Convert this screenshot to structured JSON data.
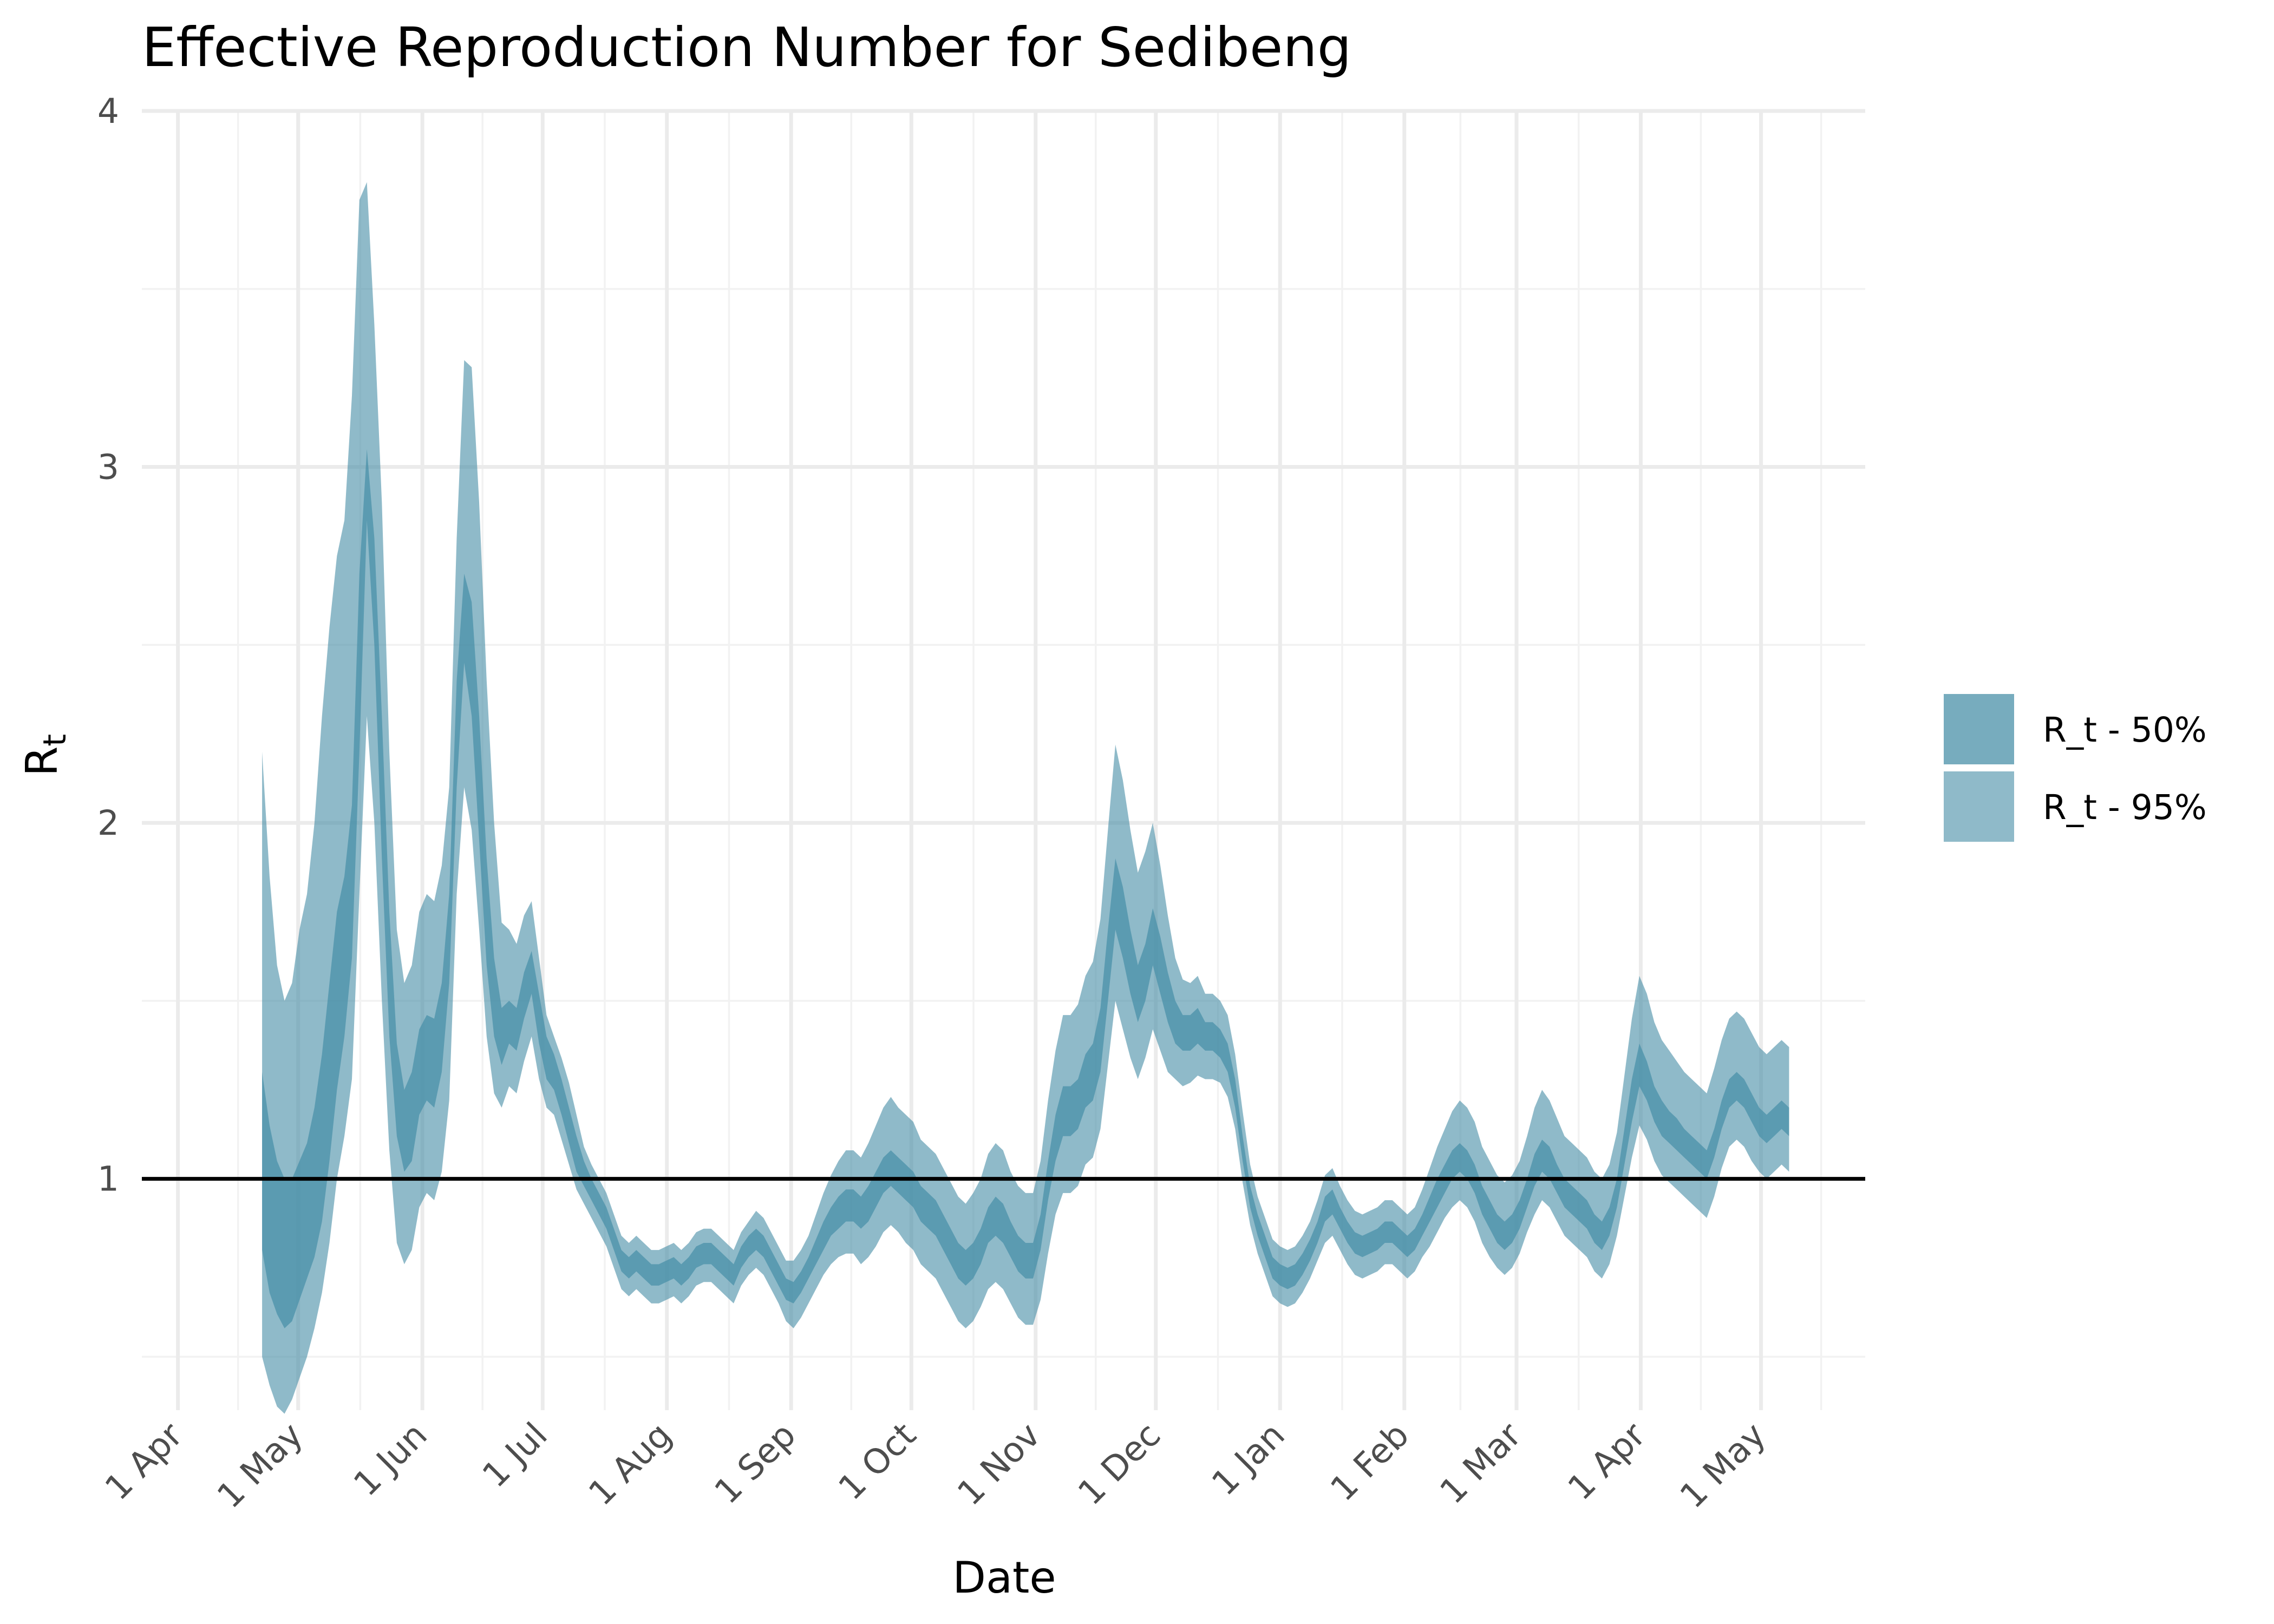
{
  "chart_data": {
    "type": "area",
    "title": "Effective Reproduction Number for Sedibeng",
    "xlabel": "Date",
    "ylabel": "R",
    "ylabel_subscript": "t",
    "ylim": [
      0.35,
      4.0
    ],
    "yticks": [
      1,
      2,
      3,
      4
    ],
    "xlim": [
      "2020-03-23",
      "2021-05-27"
    ],
    "xticks": [
      {
        "date": "2020-04-01",
        "label": "1 Apr"
      },
      {
        "date": "2020-05-01",
        "label": "1 May"
      },
      {
        "date": "2020-06-01",
        "label": "1 Jun"
      },
      {
        "date": "2020-07-01",
        "label": "1 Jul"
      },
      {
        "date": "2020-08-01",
        "label": "1 Aug"
      },
      {
        "date": "2020-09-01",
        "label": "1 Sep"
      },
      {
        "date": "2020-10-01",
        "label": "1 Oct"
      },
      {
        "date": "2020-11-01",
        "label": "1 Nov"
      },
      {
        "date": "2020-12-01",
        "label": "1 Dec"
      },
      {
        "date": "2021-01-01",
        "label": "1 Jan"
      },
      {
        "date": "2021-02-01",
        "label": "1 Feb"
      },
      {
        "date": "2021-03-01",
        "label": "1 Mar"
      },
      {
        "date": "2021-04-01",
        "label": "1 Apr"
      },
      {
        "date": "2021-05-01",
        "label": "1 May"
      }
    ],
    "reference_line": 1,
    "grid": true,
    "legend_position": "right",
    "colors": {
      "band50": "#4a90a8",
      "band95": "#4a90a8",
      "reference": "#000000"
    },
    "series": [
      {
        "name": "R_t - 50%",
        "lower": [
          0.8,
          0.68,
          0.62,
          0.58,
          0.6,
          0.66,
          0.72,
          0.78,
          0.88,
          1.05,
          1.25,
          1.4,
          1.62,
          2.2,
          2.85,
          2.5,
          1.9,
          1.4,
          1.12,
          1.02,
          1.05,
          1.18,
          1.22,
          1.2,
          1.3,
          1.55,
          2.1,
          2.45,
          2.3,
          1.95,
          1.6,
          1.4,
          1.32,
          1.38,
          1.36,
          1.45,
          1.52,
          1.38,
          1.28,
          1.25,
          1.18,
          1.1,
          1.02,
          0.98,
          0.94,
          0.9,
          0.86,
          0.8,
          0.74,
          0.72,
          0.74,
          0.72,
          0.7,
          0.7,
          0.71,
          0.72,
          0.7,
          0.72,
          0.75,
          0.76,
          0.76,
          0.74,
          0.72,
          0.7,
          0.75,
          0.78,
          0.8,
          0.78,
          0.74,
          0.7,
          0.66,
          0.65,
          0.68,
          0.72,
          0.76,
          0.8,
          0.84,
          0.86,
          0.88,
          0.88,
          0.86,
          0.88,
          0.92,
          0.96,
          0.98,
          0.96,
          0.94,
          0.92,
          0.88,
          0.86,
          0.84,
          0.8,
          0.76,
          0.72,
          0.7,
          0.72,
          0.76,
          0.82,
          0.84,
          0.82,
          0.78,
          0.74,
          0.72,
          0.72,
          0.8,
          0.94,
          1.05,
          1.12,
          1.12,
          1.14,
          1.2,
          1.22,
          1.3,
          1.5,
          1.7,
          1.62,
          1.52,
          1.44,
          1.5,
          1.6,
          1.52,
          1.44,
          1.38,
          1.36,
          1.36,
          1.38,
          1.36,
          1.36,
          1.34,
          1.3,
          1.2,
          1.05,
          0.92,
          0.84,
          0.78,
          0.72,
          0.7,
          0.69,
          0.7,
          0.73,
          0.77,
          0.82,
          0.88,
          0.9,
          0.86,
          0.82,
          0.79,
          0.78,
          0.79,
          0.8,
          0.82,
          0.82,
          0.8,
          0.78,
          0.8,
          0.84,
          0.88,
          0.92,
          0.96,
          1.0,
          1.02,
          1.0,
          0.96,
          0.9,
          0.86,
          0.82,
          0.8,
          0.82,
          0.86,
          0.92,
          0.98,
          1.02,
          1.0,
          0.96,
          0.92,
          0.9,
          0.88,
          0.86,
          0.82,
          0.8,
          0.84,
          0.92,
          1.04,
          1.16,
          1.26,
          1.22,
          1.16,
          1.12,
          1.1,
          1.08,
          1.06,
          1.04,
          1.02,
          1.0,
          1.06,
          1.14,
          1.2,
          1.22,
          1.2,
          1.16,
          1.12,
          1.1,
          1.12,
          1.14,
          1.12
        ],
        "upper": [
          1.3,
          1.15,
          1.05,
          1.0,
          1.0,
          1.05,
          1.1,
          1.2,
          1.35,
          1.55,
          1.75,
          1.85,
          2.05,
          2.7,
          3.05,
          2.8,
          2.3,
          1.75,
          1.38,
          1.25,
          1.3,
          1.42,
          1.46,
          1.45,
          1.55,
          1.8,
          2.4,
          2.7,
          2.62,
          2.3,
          1.9,
          1.62,
          1.48,
          1.5,
          1.48,
          1.58,
          1.64,
          1.52,
          1.4,
          1.35,
          1.28,
          1.2,
          1.12,
          1.05,
          1.0,
          0.96,
          0.92,
          0.86,
          0.8,
          0.78,
          0.8,
          0.78,
          0.76,
          0.76,
          0.77,
          0.78,
          0.76,
          0.78,
          0.81,
          0.82,
          0.82,
          0.8,
          0.78,
          0.76,
          0.81,
          0.84,
          0.86,
          0.84,
          0.8,
          0.76,
          0.72,
          0.71,
          0.74,
          0.78,
          0.83,
          0.88,
          0.92,
          0.95,
          0.97,
          0.97,
          0.95,
          0.98,
          1.02,
          1.06,
          1.08,
          1.06,
          1.04,
          1.02,
          0.98,
          0.96,
          0.94,
          0.9,
          0.86,
          0.82,
          0.8,
          0.82,
          0.86,
          0.92,
          0.95,
          0.93,
          0.88,
          0.84,
          0.82,
          0.82,
          0.9,
          1.05,
          1.18,
          1.26,
          1.26,
          1.28,
          1.35,
          1.38,
          1.48,
          1.7,
          1.9,
          1.82,
          1.7,
          1.6,
          1.66,
          1.76,
          1.68,
          1.58,
          1.5,
          1.46,
          1.46,
          1.48,
          1.44,
          1.44,
          1.42,
          1.38,
          1.28,
          1.12,
          0.98,
          0.9,
          0.84,
          0.78,
          0.76,
          0.75,
          0.76,
          0.79,
          0.83,
          0.88,
          0.95,
          0.97,
          0.92,
          0.88,
          0.85,
          0.84,
          0.85,
          0.86,
          0.88,
          0.88,
          0.86,
          0.84,
          0.86,
          0.9,
          0.95,
          1.0,
          1.04,
          1.08,
          1.1,
          1.08,
          1.04,
          0.98,
          0.94,
          0.9,
          0.88,
          0.9,
          0.94,
          1.0,
          1.07,
          1.11,
          1.09,
          1.04,
          1.0,
          0.98,
          0.96,
          0.94,
          0.9,
          0.88,
          0.92,
          1.0,
          1.14,
          1.28,
          1.38,
          1.33,
          1.26,
          1.22,
          1.19,
          1.17,
          1.14,
          1.12,
          1.1,
          1.08,
          1.14,
          1.22,
          1.28,
          1.3,
          1.28,
          1.24,
          1.2,
          1.18,
          1.2,
          1.22,
          1.2
        ]
      },
      {
        "name": "R_t - 95%",
        "lower": [
          0.5,
          0.42,
          0.36,
          0.34,
          0.38,
          0.44,
          0.5,
          0.58,
          0.68,
          0.82,
          1.0,
          1.12,
          1.28,
          1.8,
          2.3,
          2.0,
          1.5,
          1.08,
          0.82,
          0.76,
          0.8,
          0.92,
          0.96,
          0.94,
          1.02,
          1.22,
          1.8,
          2.1,
          1.98,
          1.7,
          1.4,
          1.24,
          1.2,
          1.26,
          1.24,
          1.33,
          1.4,
          1.28,
          1.2,
          1.18,
          1.11,
          1.04,
          0.97,
          0.93,
          0.89,
          0.85,
          0.81,
          0.75,
          0.69,
          0.67,
          0.69,
          0.67,
          0.65,
          0.65,
          0.66,
          0.67,
          0.65,
          0.67,
          0.7,
          0.71,
          0.71,
          0.69,
          0.67,
          0.65,
          0.7,
          0.73,
          0.75,
          0.73,
          0.69,
          0.65,
          0.6,
          0.58,
          0.61,
          0.65,
          0.69,
          0.73,
          0.76,
          0.78,
          0.79,
          0.79,
          0.76,
          0.78,
          0.81,
          0.85,
          0.87,
          0.85,
          0.82,
          0.8,
          0.76,
          0.74,
          0.72,
          0.68,
          0.64,
          0.6,
          0.58,
          0.6,
          0.64,
          0.69,
          0.71,
          0.69,
          0.65,
          0.61,
          0.59,
          0.59,
          0.66,
          0.79,
          0.9,
          0.96,
          0.96,
          0.98,
          1.04,
          1.06,
          1.14,
          1.32,
          1.5,
          1.42,
          1.34,
          1.28,
          1.34,
          1.42,
          1.36,
          1.3,
          1.28,
          1.26,
          1.27,
          1.29,
          1.28,
          1.28,
          1.27,
          1.23,
          1.14,
          0.99,
          0.87,
          0.79,
          0.73,
          0.67,
          0.65,
          0.64,
          0.65,
          0.68,
          0.72,
          0.77,
          0.82,
          0.84,
          0.8,
          0.76,
          0.73,
          0.72,
          0.73,
          0.74,
          0.76,
          0.76,
          0.74,
          0.72,
          0.74,
          0.78,
          0.81,
          0.85,
          0.89,
          0.92,
          0.94,
          0.92,
          0.88,
          0.82,
          0.78,
          0.75,
          0.73,
          0.75,
          0.79,
          0.85,
          0.9,
          0.94,
          0.92,
          0.88,
          0.84,
          0.82,
          0.8,
          0.78,
          0.74,
          0.72,
          0.76,
          0.84,
          0.95,
          1.06,
          1.15,
          1.11,
          1.05,
          1.01,
          0.99,
          0.97,
          0.95,
          0.93,
          0.91,
          0.89,
          0.95,
          1.03,
          1.09,
          1.11,
          1.09,
          1.05,
          1.02,
          1.0,
          1.02,
          1.04,
          1.02
        ],
        "upper": [
          2.2,
          1.85,
          1.6,
          1.5,
          1.55,
          1.7,
          1.8,
          2.0,
          2.3,
          2.55,
          2.75,
          2.85,
          3.2,
          3.75,
          3.8,
          3.4,
          2.9,
          2.2,
          1.7,
          1.55,
          1.6,
          1.75,
          1.8,
          1.78,
          1.88,
          2.1,
          2.8,
          3.3,
          3.28,
          2.9,
          2.4,
          2.0,
          1.72,
          1.7,
          1.66,
          1.74,
          1.78,
          1.62,
          1.46,
          1.4,
          1.34,
          1.27,
          1.18,
          1.09,
          1.04,
          1.0,
          0.96,
          0.9,
          0.84,
          0.82,
          0.84,
          0.82,
          0.8,
          0.8,
          0.81,
          0.82,
          0.8,
          0.82,
          0.85,
          0.86,
          0.86,
          0.84,
          0.82,
          0.8,
          0.85,
          0.88,
          0.91,
          0.89,
          0.85,
          0.81,
          0.77,
          0.77,
          0.8,
          0.84,
          0.9,
          0.96,
          1.01,
          1.05,
          1.08,
          1.08,
          1.06,
          1.1,
          1.15,
          1.2,
          1.23,
          1.2,
          1.18,
          1.16,
          1.11,
          1.09,
          1.07,
          1.03,
          0.99,
          0.95,
          0.93,
          0.96,
          1.0,
          1.07,
          1.1,
          1.08,
          1.02,
          0.98,
          0.96,
          0.96,
          1.05,
          1.22,
          1.36,
          1.46,
          1.46,
          1.49,
          1.57,
          1.61,
          1.73,
          1.98,
          2.22,
          2.12,
          1.98,
          1.86,
          1.92,
          2.0,
          1.88,
          1.74,
          1.62,
          1.56,
          1.55,
          1.57,
          1.52,
          1.52,
          1.5,
          1.46,
          1.35,
          1.19,
          1.04,
          0.95,
          0.89,
          0.83,
          0.81,
          0.8,
          0.81,
          0.84,
          0.88,
          0.94,
          1.01,
          1.03,
          0.98,
          0.94,
          0.91,
          0.9,
          0.91,
          0.92,
          0.94,
          0.94,
          0.92,
          0.9,
          0.92,
          0.97,
          1.03,
          1.09,
          1.14,
          1.19,
          1.22,
          1.2,
          1.16,
          1.09,
          1.05,
          1.01,
          0.99,
          1.01,
          1.05,
          1.12,
          1.2,
          1.25,
          1.22,
          1.17,
          1.12,
          1.1,
          1.08,
          1.06,
          1.02,
          1.0,
          1.04,
          1.13,
          1.29,
          1.45,
          1.57,
          1.52,
          1.44,
          1.39,
          1.36,
          1.33,
          1.3,
          1.28,
          1.26,
          1.24,
          1.31,
          1.39,
          1.45,
          1.47,
          1.45,
          1.41,
          1.37,
          1.35,
          1.37,
          1.39,
          1.37
        ]
      }
    ],
    "x_start": "2020-04-22",
    "x_end": "2021-05-08"
  }
}
